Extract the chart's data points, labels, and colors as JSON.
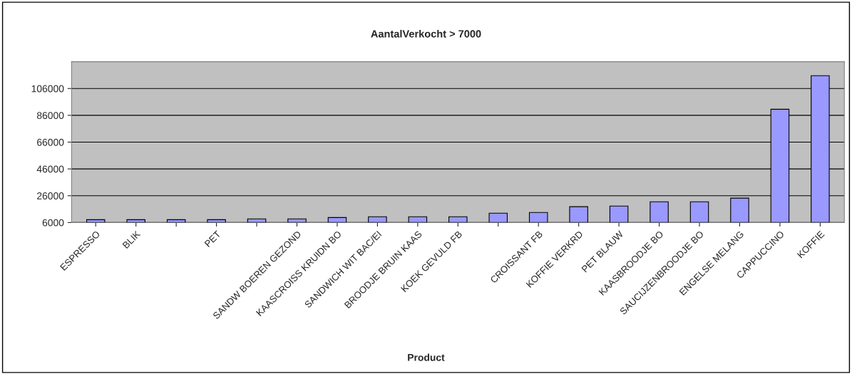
{
  "chart_data": {
    "type": "bar",
    "title": "AantalVerkocht > 7000",
    "xlabel": "Product",
    "categories": [
      "ESPRESSO",
      "BLIK",
      null,
      "PET",
      null,
      "SANDW BOEREN GEZOND",
      "KAASCROISS KRUIDN BO",
      "SANDWICH WIT BAC/EI",
      "BROODJE BRUIN KAAS",
      "KOEK GEVULD FB",
      null,
      "CROISSANT FB",
      "KOFFIE VERKRD",
      "PET BLAUW",
      "KAASBROODJE BO",
      "SAUCIJZENBROODJE BO",
      "ENGELSE MELANG",
      "CAPPUCCINO",
      "KOFFIE"
    ],
    "values": [
      8100,
      8100,
      8100,
      8100,
      8700,
      8700,
      9700,
      10300,
      10300,
      10300,
      13000,
      13500,
      17800,
      18300,
      21500,
      21500,
      24200,
      90500,
      115600
    ],
    "color": "#9999ff",
    "ylim": [
      6000,
      126000
    ],
    "yticks": [
      6000,
      26000,
      46000,
      66000,
      86000,
      106000
    ],
    "grid": "y"
  }
}
